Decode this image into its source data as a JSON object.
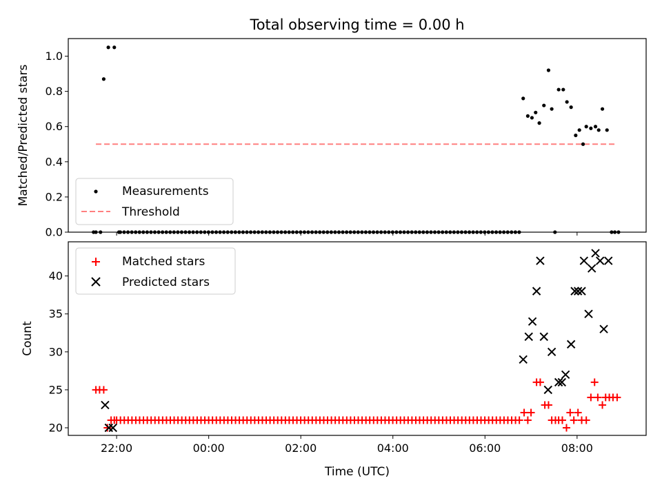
{
  "title": "Total observing time = 0.00 h",
  "chart_data": [
    {
      "type": "scatter",
      "ylabel": "Matched/Predicted stars",
      "xlabel": "",
      "ylim": [
        0,
        1.1
      ],
      "yticks": [
        "0.0",
        "0.2",
        "0.4",
        "0.6",
        "0.8",
        "1.0"
      ],
      "grid": false,
      "legend_position": "lower-left",
      "series": [
        {
          "name": "Measurements",
          "color": "#000000",
          "marker": "dot",
          "points": [
            [
              -2.5,
              0
            ],
            [
              -2.45,
              0
            ],
            [
              -2.35,
              0
            ],
            [
              -2.28,
              0.87
            ],
            [
              -2.18,
              1.05
            ],
            [
              -2.05,
              1.05
            ],
            [
              -1.95,
              0
            ],
            [
              6.83,
              0.76
            ],
            [
              6.93,
              0.66
            ],
            [
              7.02,
              0.65
            ],
            [
              7.1,
              0.68
            ],
            [
              7.18,
              0.62
            ],
            [
              7.28,
              0.72
            ],
            [
              7.38,
              0.92
            ],
            [
              7.45,
              0.7
            ],
            [
              7.52,
              0
            ],
            [
              7.6,
              0.81
            ],
            [
              7.7,
              0.81
            ],
            [
              7.78,
              0.74
            ],
            [
              7.87,
              0.71
            ],
            [
              7.97,
              0.55
            ],
            [
              8.05,
              0.58
            ],
            [
              8.13,
              0.5
            ],
            [
              8.2,
              0.6
            ],
            [
              8.3,
              0.59
            ],
            [
              8.4,
              0.6
            ],
            [
              8.47,
              0.58
            ],
            [
              8.55,
              0.7
            ],
            [
              8.65,
              0.58
            ],
            [
              8.75,
              0
            ],
            [
              8.82,
              0
            ],
            [
              8.9,
              0
            ]
          ]
        },
        {
          "name": "Threshold",
          "color": "#ff7f7f",
          "style": "dashed",
          "x": [
            -2.45,
            8.82
          ],
          "y": [
            0.5,
            0.5
          ]
        }
      ]
    },
    {
      "type": "scatter",
      "ylabel": "Count",
      "xlabel": "Time (UTC)",
      "ylim": [
        19,
        44.5
      ],
      "yticks": [
        "20",
        "25",
        "30",
        "35",
        "40"
      ],
      "xticks": [
        "22:00",
        "00:00",
        "02:00",
        "04:00",
        "06:00",
        "08:00"
      ],
      "xrange_hours_relative_to_midnight": [
        -3.05,
        9.5
      ],
      "grid": false,
      "legend_position": "upper-left",
      "series": [
        {
          "name": "Matched stars",
          "color": "#ff0000",
          "marker": "plus",
          "points": [
            [
              -2.45,
              25
            ],
            [
              -2.37,
              25
            ],
            [
              -2.28,
              25
            ],
            [
              -2.2,
              20
            ],
            [
              -2.12,
              21
            ],
            [
              -2.05,
              21
            ],
            [
              6.85,
              22
            ],
            [
              6.93,
              21
            ],
            [
              7.0,
              22
            ],
            [
              7.12,
              26
            ],
            [
              7.2,
              26
            ],
            [
              7.3,
              23
            ],
            [
              7.38,
              23
            ],
            [
              7.45,
              21
            ],
            [
              7.53,
              21
            ],
            [
              7.6,
              21
            ],
            [
              7.68,
              21
            ],
            [
              7.77,
              20
            ],
            [
              7.85,
              22
            ],
            [
              7.93,
              21
            ],
            [
              8.02,
              22
            ],
            [
              8.1,
              21
            ],
            [
              8.2,
              21
            ],
            [
              8.3,
              24
            ],
            [
              8.38,
              26
            ],
            [
              8.45,
              24
            ],
            [
              8.55,
              23
            ],
            [
              8.62,
              24
            ],
            [
              8.7,
              24
            ],
            [
              8.78,
              24
            ],
            [
              8.87,
              24
            ]
          ]
        },
        {
          "name": "Predicted stars",
          "color": "#000000",
          "marker": "x",
          "points": [
            [
              -2.25,
              23
            ],
            [
              -2.17,
              20
            ],
            [
              -2.08,
              20
            ],
            [
              6.83,
              29
            ],
            [
              6.95,
              32
            ],
            [
              7.03,
              34
            ],
            [
              7.12,
              38
            ],
            [
              7.2,
              42
            ],
            [
              7.28,
              32
            ],
            [
              7.37,
              25
            ],
            [
              7.45,
              30
            ],
            [
              7.6,
              26
            ],
            [
              7.67,
              26
            ],
            [
              7.75,
              27
            ],
            [
              7.87,
              31
            ],
            [
              7.95,
              38
            ],
            [
              8.02,
              38
            ],
            [
              8.1,
              38
            ],
            [
              8.15,
              42
            ],
            [
              8.25,
              35
            ],
            [
              8.32,
              41
            ],
            [
              8.4,
              43
            ],
            [
              8.5,
              42
            ],
            [
              8.58,
              33
            ],
            [
              8.68,
              42
            ]
          ]
        }
      ]
    }
  ]
}
